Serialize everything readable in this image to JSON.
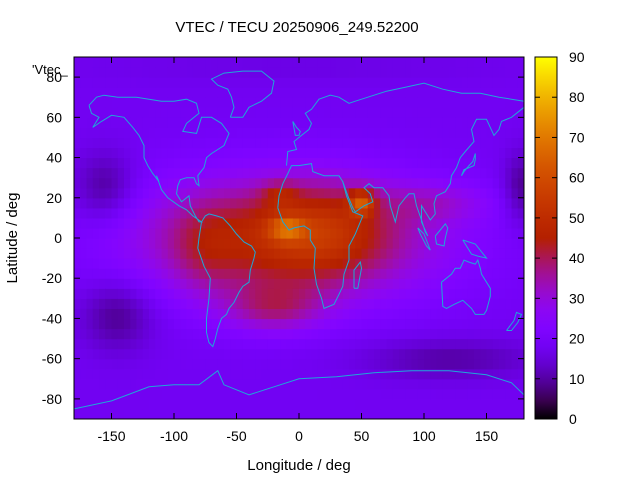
{
  "chart_data": {
    "type": "heatmap",
    "title": "VTEC / TECU 20250906_249.52200",
    "xlabel": "Longitude / deg",
    "ylabel": "Latitude / deg",
    "key_label": "'Vtec_",
    "xlim": [
      -180,
      180
    ],
    "ylim": [
      -90,
      90
    ],
    "x_ticks": [
      -150,
      -100,
      -50,
      0,
      50,
      100,
      150
    ],
    "y_ticks": [
      -80,
      -60,
      -40,
      -20,
      0,
      20,
      40,
      60,
      80
    ],
    "colorbar": {
      "min": 0,
      "max": 90,
      "ticks": [
        0,
        10,
        20,
        30,
        40,
        50,
        60,
        70,
        80,
        90
      ]
    },
    "background_tecu": 18,
    "features": [
      {
        "type": "blob",
        "lon": -10,
        "lat": 0,
        "lon_radius": 115,
        "lat_radius": 30,
        "tecu": 30
      },
      {
        "type": "blob",
        "lon": -75,
        "lat": -5,
        "lon_radius": 25,
        "lat_radius": 22,
        "tecu": 6
      },
      {
        "type": "blob",
        "lon": 20,
        "lat": 5,
        "lon_radius": 45,
        "lat_radius": 22,
        "tecu": 10
      },
      {
        "type": "blob",
        "lon": -20,
        "lat": -35,
        "lon_radius": 40,
        "lat_radius": 12,
        "tecu": 14
      },
      {
        "type": "blob",
        "lon": 110,
        "lat": 18,
        "lon_radius": 45,
        "lat_radius": 10,
        "tecu": 8
      },
      {
        "type": "blob",
        "lon": -10,
        "lat": 5,
        "lon_radius": 14,
        "lat_radius": 6,
        "tecu": 18
      },
      {
        "type": "blob",
        "lon": 50,
        "lat": 18,
        "lon_radius": 10,
        "lat_radius": 6,
        "tecu": 25
      },
      {
        "type": "blob",
        "lon": -15,
        "lat": 22,
        "lon_radius": 14,
        "lat_radius": 6,
        "tecu": 10
      },
      {
        "type": "blob",
        "lon": -155,
        "lat": 25,
        "lon_radius": 25,
        "lat_radius": 18,
        "tecu": -10
      },
      {
        "type": "blob",
        "lon": 178,
        "lat": 25,
        "lon_radius": 15,
        "lat_radius": 18,
        "tecu": -10
      },
      {
        "type": "blob",
        "lon": -145,
        "lat": -38,
        "lon_radius": 30,
        "lat_radius": 18,
        "tecu": -10
      },
      {
        "type": "blob",
        "lon": 120,
        "lat": -60,
        "lon_radius": 70,
        "lat_radius": 10,
        "tecu": -8
      },
      {
        "type": "blob",
        "lon": 0,
        "lat": 85,
        "lon_radius": 180,
        "lat_radius": 8,
        "tecu": -2
      }
    ],
    "coastlines": [
      [
        [
          -168,
          66
        ],
        [
          -162,
          70
        ],
        [
          -156,
          71
        ],
        [
          -145,
          70
        ],
        [
          -130,
          70
        ],
        [
          -120,
          69
        ],
        [
          -110,
          68
        ],
        [
          -100,
          68
        ],
        [
          -90,
          69
        ],
        [
          -82,
          67
        ],
        [
          -80,
          62
        ],
        [
          -90,
          57
        ],
        [
          -93,
          53
        ],
        [
          -82,
          52
        ],
        [
          -78,
          60
        ],
        [
          -70,
          60
        ],
        [
          -62,
          57
        ],
        [
          -56,
          52
        ],
        [
          -60,
          46
        ],
        [
          -65,
          44
        ],
        [
          -70,
          42
        ],
        [
          -74,
          40
        ],
        [
          -76,
          35
        ],
        [
          -81,
          31
        ],
        [
          -80,
          26
        ],
        [
          -82,
          27
        ],
        [
          -84,
          30
        ],
        [
          -90,
          30
        ],
        [
          -95,
          29
        ],
        [
          -97,
          26
        ],
        [
          -98,
          22
        ],
        [
          -94,
          18
        ],
        [
          -88,
          21
        ],
        [
          -87,
          16
        ],
        [
          -83,
          11
        ],
        [
          -80,
          8
        ],
        [
          -78,
          8
        ],
        [
          -85,
          11
        ],
        [
          -90,
          14
        ],
        [
          -96,
          16
        ],
        [
          -105,
          20
        ],
        [
          -110,
          24
        ],
        [
          -114,
          31
        ],
        [
          -112,
          28
        ],
        [
          -117,
          32
        ],
        [
          -121,
          36
        ],
        [
          -124,
          40
        ],
        [
          -124,
          46
        ],
        [
          -128,
          51
        ],
        [
          -133,
          55
        ],
        [
          -140,
          60
        ],
        [
          -150,
          61
        ],
        [
          -158,
          58
        ],
        [
          -165,
          55
        ],
        [
          -160,
          60
        ],
        [
          -166,
          62
        ],
        [
          -168,
          66
        ]
      ],
      [
        [
          -78,
          8
        ],
        [
          -75,
          11
        ],
        [
          -72,
          12
        ],
        [
          -66,
          11
        ],
        [
          -61,
          10
        ],
        [
          -55,
          6
        ],
        [
          -50,
          2
        ],
        [
          -44,
          -2
        ],
        [
          -38,
          -4
        ],
        [
          -35,
          -7
        ],
        [
          -36,
          -10
        ],
        [
          -39,
          -16
        ],
        [
          -40,
          -22
        ],
        [
          -45,
          -24
        ],
        [
          -48,
          -27
        ],
        [
          -52,
          -32
        ],
        [
          -56,
          -35
        ],
        [
          -58,
          -38
        ],
        [
          -62,
          -40
        ],
        [
          -65,
          -45
        ],
        [
          -67,
          -50
        ],
        [
          -69,
          -54
        ],
        [
          -72,
          -52
        ],
        [
          -74,
          -47
        ],
        [
          -74,
          -40
        ],
        [
          -72,
          -30
        ],
        [
          -71,
          -20
        ],
        [
          -76,
          -14
        ],
        [
          -81,
          -5
        ],
        [
          -80,
          0
        ],
        [
          -78,
          8
        ]
      ],
      [
        [
          -17,
          15
        ],
        [
          -16,
          21
        ],
        [
          -13,
          27
        ],
        [
          -9,
          32
        ],
        [
          -6,
          36
        ],
        [
          0,
          36
        ],
        [
          10,
          37
        ],
        [
          11,
          33
        ],
        [
          20,
          31
        ],
        [
          32,
          31
        ],
        [
          35,
          28
        ],
        [
          38,
          21
        ],
        [
          43,
          13
        ],
        [
          51,
          11
        ],
        [
          45,
          2
        ],
        [
          40,
          -4
        ],
        [
          40,
          -11
        ],
        [
          36,
          -18
        ],
        [
          35,
          -24
        ],
        [
          32,
          -28
        ],
        [
          28,
          -33
        ],
        [
          20,
          -35
        ],
        [
          18,
          -30
        ],
        [
          14,
          -23
        ],
        [
          12,
          -15
        ],
        [
          13,
          -5
        ],
        [
          9,
          -1
        ],
        [
          9,
          4
        ],
        [
          4,
          6
        ],
        [
          -4,
          5
        ],
        [
          -8,
          4
        ],
        [
          -13,
          8
        ],
        [
          -17,
          15
        ]
      ],
      [
        [
          -10,
          36
        ],
        [
          -9,
          43
        ],
        [
          -2,
          44
        ],
        [
          -4,
          48
        ],
        [
          2,
          51
        ],
        [
          8,
          54
        ],
        [
          10,
          57
        ],
        [
          5,
          62
        ],
        [
          10,
          64
        ],
        [
          16,
          69
        ],
        [
          25,
          71
        ],
        [
          32,
          70
        ],
        [
          40,
          67
        ],
        [
          45,
          68
        ],
        [
          55,
          70
        ],
        [
          70,
          73
        ],
        [
          85,
          75
        ],
        [
          100,
          77
        ],
        [
          115,
          74
        ],
        [
          130,
          72
        ],
        [
          145,
          72
        ],
        [
          160,
          70
        ],
        [
          170,
          69
        ],
        [
          180,
          68
        ]
      ],
      [
        [
          180,
          65
        ],
        [
          170,
          60
        ],
        [
          162,
          58
        ],
        [
          160,
          54
        ],
        [
          156,
          51
        ],
        [
          150,
          59
        ],
        [
          142,
          59
        ],
        [
          138,
          54
        ],
        [
          140,
          48
        ],
        [
          133,
          43
        ],
        [
          129,
          40
        ],
        [
          126,
          35
        ],
        [
          122,
          31
        ],
        [
          121,
          27
        ],
        [
          117,
          23
        ],
        [
          110,
          21
        ],
        [
          108,
          17
        ],
        [
          109,
          12
        ],
        [
          105,
          9
        ],
        [
          101,
          13
        ],
        [
          98,
          16
        ],
        [
          98,
          8
        ],
        [
          103,
          1
        ],
        [
          101,
          3
        ],
        [
          98,
          9
        ],
        [
          94,
          16
        ],
        [
          92,
          22
        ],
        [
          88,
          22
        ],
        [
          85,
          20
        ],
        [
          80,
          16
        ],
        [
          77,
          8
        ],
        [
          73,
          16
        ],
        [
          72,
          21
        ],
        [
          67,
          25
        ],
        [
          60,
          25
        ],
        [
          56,
          27
        ],
        [
          52,
          25
        ],
        [
          57,
          22
        ],
        [
          59,
          18
        ],
        [
          52,
          16
        ],
        [
          45,
          13
        ],
        [
          43,
          15
        ],
        [
          39,
          21
        ],
        [
          35,
          28
        ]
      ],
      [
        [
          -5,
          58
        ],
        [
          -3,
          51
        ],
        [
          0,
          51
        ],
        [
          1,
          53
        ],
        [
          -2,
          55
        ],
        [
          -5,
          58
        ]
      ],
      [
        [
          114,
          -22
        ],
        [
          115,
          -34
        ],
        [
          118,
          -35
        ],
        [
          124,
          -33
        ],
        [
          131,
          -31
        ],
        [
          138,
          -35
        ],
        [
          141,
          -38
        ],
        [
          148,
          -38
        ],
        [
          150,
          -36
        ],
        [
          153,
          -29
        ],
        [
          153,
          -25
        ],
        [
          150,
          -22
        ],
        [
          146,
          -18
        ],
        [
          145,
          -15
        ],
        [
          143,
          -11
        ],
        [
          141,
          -13
        ],
        [
          136,
          -12
        ],
        [
          132,
          -11
        ],
        [
          129,
          -15
        ],
        [
          125,
          -15
        ],
        [
          122,
          -18
        ],
        [
          114,
          -22
        ]
      ],
      [
        [
          -55,
          60
        ],
        [
          -45,
          60
        ],
        [
          -40,
          65
        ],
        [
          -30,
          68
        ],
        [
          -22,
          72
        ],
        [
          -20,
          78
        ],
        [
          -30,
          83
        ],
        [
          -45,
          83
        ],
        [
          -60,
          82
        ],
        [
          -70,
          79
        ],
        [
          -65,
          76
        ],
        [
          -57,
          74
        ],
        [
          -54,
          70
        ],
        [
          -52,
          65
        ],
        [
          -55,
          60
        ]
      ],
      [
        [
          44,
          -25
        ],
        [
          47,
          -25
        ],
        [
          50,
          -15
        ],
        [
          49,
          -12
        ],
        [
          44,
          -16
        ],
        [
          44,
          -25
        ]
      ],
      [
        [
          130,
          31
        ],
        [
          132,
          34
        ],
        [
          136,
          35
        ],
        [
          140,
          36
        ],
        [
          141,
          39
        ],
        [
          141,
          42
        ],
        [
          139,
          38
        ],
        [
          136,
          36
        ],
        [
          132,
          33
        ],
        [
          130,
          31
        ]
      ],
      [
        [
          95,
          5
        ],
        [
          100,
          2
        ],
        [
          105,
          -6
        ],
        [
          102,
          -4
        ],
        [
          97,
          2
        ],
        [
          95,
          5
        ]
      ],
      [
        [
          109,
          1
        ],
        [
          117,
          7
        ],
        [
          119,
          5
        ],
        [
          117,
          0
        ],
        [
          116,
          -4
        ],
        [
          110,
          -3
        ],
        [
          109,
          1
        ]
      ],
      [
        [
          131,
          -1
        ],
        [
          141,
          -3
        ],
        [
          150,
          -10
        ],
        [
          143,
          -9
        ],
        [
          138,
          -8
        ],
        [
          131,
          -1
        ]
      ],
      [
        [
          166,
          -46
        ],
        [
          172,
          -41
        ],
        [
          174,
          -37
        ],
        [
          178,
          -38
        ],
        [
          175,
          -42
        ],
        [
          170,
          -46
        ],
        [
          166,
          -46
        ]
      ],
      [
        [
          -180,
          -85
        ],
        [
          -150,
          -81
        ],
        [
          -120,
          -74
        ],
        [
          -100,
          -73
        ],
        [
          -80,
          -73
        ],
        [
          -65,
          -66
        ],
        [
          -60,
          -73
        ],
        [
          -40,
          -78
        ],
        [
          -20,
          -74
        ],
        [
          0,
          -70
        ],
        [
          30,
          -69
        ],
        [
          60,
          -67
        ],
        [
          90,
          -66
        ],
        [
          120,
          -66
        ],
        [
          150,
          -68
        ],
        [
          170,
          -72
        ],
        [
          180,
          -78
        ]
      ]
    ]
  }
}
